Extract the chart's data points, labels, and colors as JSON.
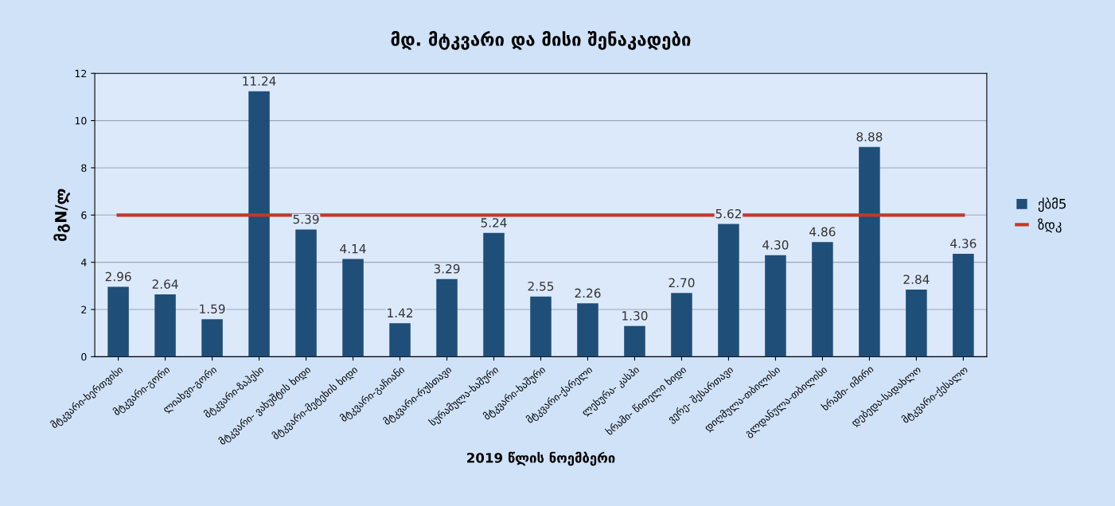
{
  "chart_data": {
    "type": "bar",
    "title": "მდ. მტკვარი და მისი შენაკადები",
    "xlabel": "2019 წლის ნოემბერი",
    "ylabel": "მგN/ლ",
    "categories": [
      "მტკვარი-ხერთვისი",
      "მტკვარი-გორი",
      "ლიახვი-გორი",
      "მტკვარი-ზაჰესი",
      "მტკვარი- ვახუშტის ხიდი",
      "მტკვარი-მეტეხის ხიდი",
      "მტკვარი-გაჩიანი",
      "მტკვარი-რუსთავი",
      "სურამულა-ხაშური",
      "მტკვარი-ხაშური",
      "მტკვარი-ქარელი",
      "ლეხურა- კასპი",
      "ხრამი- წითელი ხიდი",
      "ვერე- შესართავი",
      "დიღმულა-თბილისი",
      "გლდანულა-თბილისი",
      "ხრამი- იმირი",
      "დებედა-სადახლო",
      "მტკვარი-ქესალო"
    ],
    "series": [
      {
        "name": "ქბმ5",
        "color": "#1f4e79",
        "values": [
          2.96,
          2.64,
          1.59,
          11.24,
          5.39,
          4.14,
          1.42,
          3.29,
          5.24,
          2.55,
          2.26,
          1.3,
          2.7,
          5.62,
          4.3,
          4.86,
          8.88,
          2.84,
          4.36
        ],
        "value_labels": [
          "2.96",
          "2.64",
          "1.59",
          "11.24",
          "5.39",
          "4.14",
          "1.42",
          "3.29",
          "5.24",
          "2.55",
          "2.26",
          "1.30",
          "2.70",
          "5.62",
          "4.30",
          "4.86",
          "8.88",
          "2.84",
          "4.36"
        ]
      },
      {
        "type": "line",
        "name": "ზდკ",
        "color": "#c0392b",
        "values": [
          6,
          6,
          6,
          6,
          6,
          6,
          6,
          6,
          6,
          6,
          6,
          6,
          6,
          6,
          6,
          6,
          6,
          6,
          6
        ]
      }
    ],
    "ylim": [
      0,
      12
    ],
    "yticks": [
      0,
      2,
      4,
      6,
      8,
      10,
      12
    ],
    "grid": "y",
    "legend": "right"
  }
}
